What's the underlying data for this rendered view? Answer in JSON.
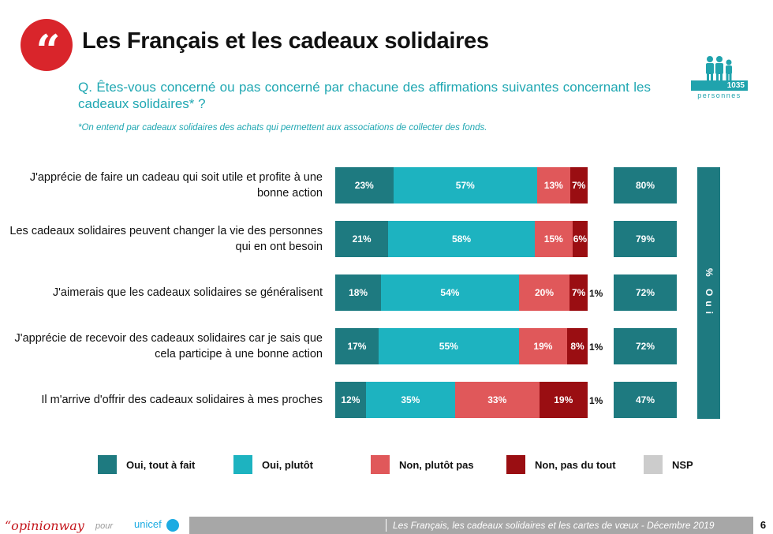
{
  "header": {
    "quote_icon": "quotation-mark-icon",
    "title": "Les Français et les cadeaux solidaires",
    "question": "Q. Êtes-vous concerné ou pas concerné par chacune des affirmations suivantes concernant les cadeaux solidaires* ?",
    "footnote": "*On entend par cadeaux solidaires des achats qui permettent aux associations de collecter des fonds.",
    "sample_count": "1035",
    "sample_label": "personnes",
    "sample_icon": "people-icon"
  },
  "colors": {
    "oui_tout_a_fait": "#1e7a80",
    "oui_plutot": "#1db3c0",
    "non_plutot_pas": "#e0585a",
    "non_pas_du_tout": "#9a0e12",
    "nsp": "#cccccc",
    "total": "#1e7a80",
    "accent": "#d9252b",
    "question_text": "#1fa7b2"
  },
  "chart_data": {
    "type": "bar",
    "orientation": "horizontal",
    "stacked": true,
    "categories": [
      "J'apprécie de faire un cadeau qui soit utile et profite à une bonne action",
      "Les cadeaux solidaires peuvent changer la vie des personnes qui en ont besoin",
      "J'aimerais que les cadeaux solidaires se généralisent",
      "J'apprécie de recevoir des cadeaux solidaires car je sais que cela participe à une bonne action",
      "Il m'arrive d'offrir des cadeaux solidaires à mes proches"
    ],
    "series": [
      {
        "name": "Oui, tout à fait",
        "values": [
          23,
          21,
          18,
          17,
          12
        ]
      },
      {
        "name": "Oui, plutôt",
        "values": [
          57,
          58,
          54,
          55,
          35
        ]
      },
      {
        "name": "Non, plutôt pas",
        "values": [
          13,
          15,
          20,
          19,
          33
        ]
      },
      {
        "name": "Non, pas du tout",
        "values": [
          7,
          6,
          7,
          8,
          19
        ]
      },
      {
        "name": "NSP",
        "values": [
          null,
          null,
          1,
          1,
          1
        ]
      }
    ],
    "totals": {
      "label": "% Oui",
      "values": [
        80,
        79,
        72,
        72,
        47
      ]
    },
    "unit": "%",
    "legend_position": "bottom",
    "grid": false
  },
  "footer": {
    "brand": "“opinionway",
    "pour": "pour",
    "partner": "unicef",
    "partner_icon": "unicef-globe-icon",
    "text": "Les Français, les cadeaux solidaires et les cartes de vœux - Décembre 2019",
    "page": "6"
  }
}
